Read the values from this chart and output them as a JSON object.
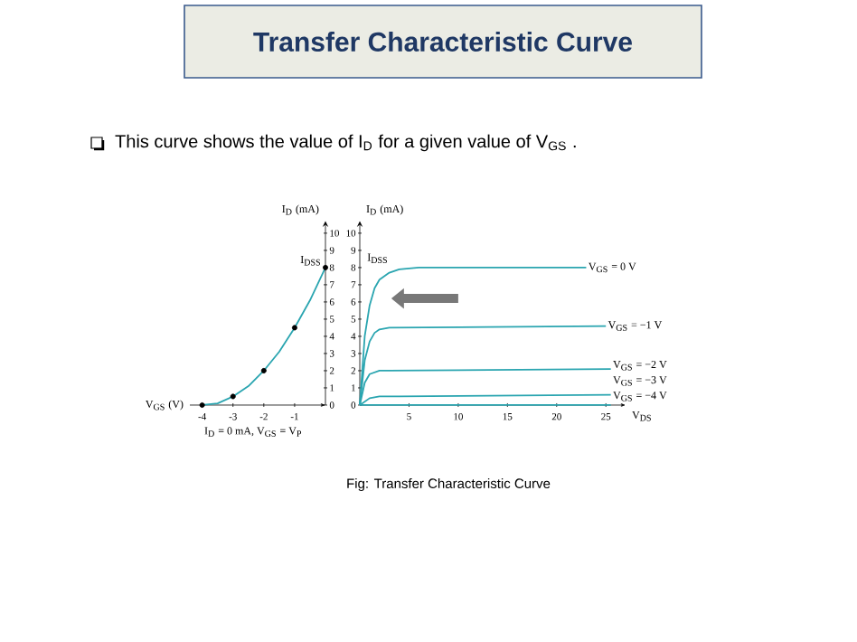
{
  "chart_data": [
    {
      "type": "line",
      "xlabel": "V$_{GS}$ (V)",
      "ylabel": "I$_{D}$ (mA)",
      "xlim": [
        -4.4,
        0
      ],
      "ylim": [
        0,
        10.7
      ],
      "xticks": [
        -4,
        -3,
        -2,
        -1
      ],
      "yticks": [
        0,
        1,
        2,
        3,
        4,
        5,
        6,
        7,
        8,
        9,
        10
      ],
      "series": [
        {
          "color": "#2aa5b0",
          "x": [
            -4,
            -3.5,
            -3,
            -2.5,
            -2,
            -1.5,
            -1,
            -0.5,
            0
          ],
          "values": [
            0,
            0.1,
            0.5,
            1.1,
            2,
            3.1,
            4.5,
            6.1,
            8
          ]
        },
        {
          "type": "scatter",
          "color": "#000000",
          "x": [
            -4,
            -3,
            -2,
            -1,
            0
          ],
          "values": [
            0,
            0.5,
            2,
            4.5,
            8
          ]
        }
      ],
      "annotations": [
        {
          "text": "I$_{DSS}$",
          "x": 0,
          "y": 8
        },
        {
          "text": "I$_{D}$ = 0 mA, V$_{GS}$ = V$_{P}$",
          "x": -4,
          "y": 0
        }
      ]
    },
    {
      "type": "line",
      "xlabel": "V$_{DS}$",
      "ylabel": "I$_{D}$ (mA)",
      "xlim": [
        0,
        27
      ],
      "ylim": [
        0,
        10.7
      ],
      "xticks": [
        5,
        10,
        15,
        20,
        25
      ],
      "yticks": [
        0,
        1,
        2,
        3,
        4,
        5,
        6,
        7,
        8,
        9,
        10
      ],
      "series": [
        {
          "name": "V$_{GS}$ = 0 V",
          "color": "#2aa5b0",
          "x": [
            0,
            0.5,
            1,
            1.5,
            2,
            3,
            4,
            6,
            23
          ],
          "values": [
            0,
            4,
            5.8,
            6.8,
            7.3,
            7.7,
            7.9,
            8,
            8
          ]
        },
        {
          "name": "V$_{GS}$ = −1 V",
          "color": "#2aa5b0",
          "x": [
            0,
            0.5,
            1,
            1.5,
            2,
            3,
            25
          ],
          "values": [
            0,
            2.6,
            3.7,
            4.2,
            4.4,
            4.5,
            4.6
          ]
        },
        {
          "name": "V$_{GS}$ = −2 V",
          "color": "#2aa5b0",
          "x": [
            0,
            0.5,
            1,
            2,
            3,
            25.5
          ],
          "values": [
            0,
            1.3,
            1.8,
            2,
            2,
            2.1
          ]
        },
        {
          "name": "V$_{GS}$ = −3 V",
          "color": "#2aa5b0",
          "x": [
            0,
            1,
            2,
            4,
            25.5
          ],
          "values": [
            0,
            0.4,
            0.5,
            0.5,
            0.6
          ]
        },
        {
          "name": "V$_{GS}$ = −4 V",
          "color": "#2aa5b0",
          "x": [
            0,
            25.5
          ],
          "values": [
            0,
            0
          ]
        }
      ],
      "annotations": [
        "I$_{DSS}$"
      ]
    },
    {
      "type": "other",
      "title": "Transfer Characteristic Curve",
      "subtitle": "This curve shows the value of I$_{D}$ for a given value of V$_{GS}$ .",
      "annotations": [
        "Fig: Transfer Characteristic Curve"
      ]
    }
  ]
}
